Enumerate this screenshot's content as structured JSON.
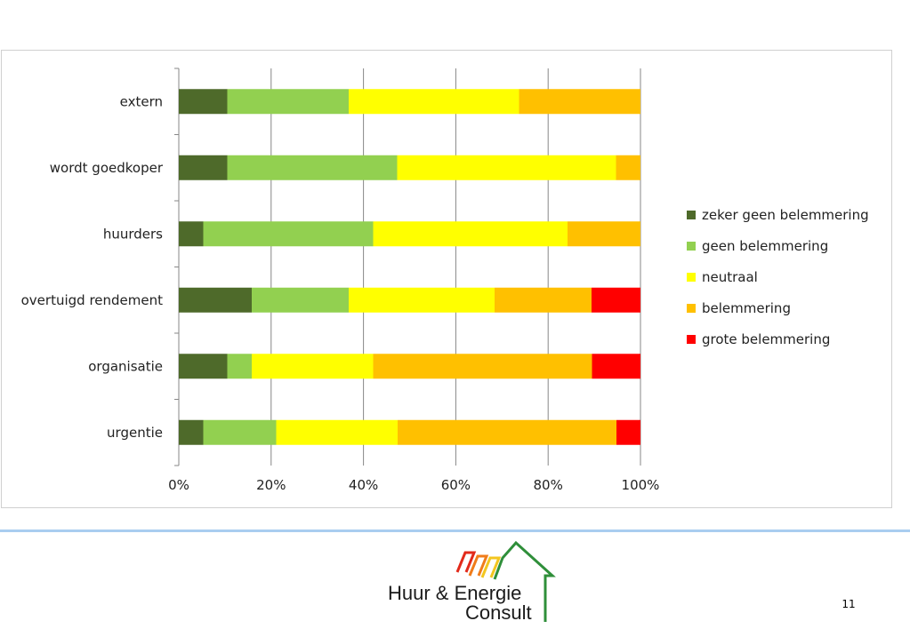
{
  "colors": {
    "zeker_geen_belemmering": "#4e6a2a",
    "geen_belemmering": "#92d050",
    "neutraal": "#ffff00",
    "belemmering": "#ffc000",
    "grote_belemmering": "#ff0000",
    "gridline": "#878787",
    "divider": "#a9cdf0"
  },
  "chart_data": {
    "type": "bar",
    "orientation": "horizontal",
    "stacked": "percent",
    "title": "",
    "xlabel": "",
    "ylabel": "",
    "xlim": [
      0,
      100
    ],
    "x_ticks": [
      "0%",
      "20%",
      "40%",
      "60%",
      "80%",
      "100%"
    ],
    "categories": [
      "urgentie",
      "organisatie",
      "overtuigd rendement",
      "huurders",
      "wordt goedkoper",
      "extern"
    ],
    "series": [
      {
        "name": "zeker geen belemmering",
        "values": [
          5.3,
          10.5,
          15.8,
          5.3,
          10.5,
          10.5
        ]
      },
      {
        "name": "geen belemmering",
        "values": [
          15.8,
          5.3,
          21.0,
          36.8,
          36.8,
          26.3
        ]
      },
      {
        "name": "neutraal",
        "values": [
          26.3,
          26.3,
          31.6,
          42.1,
          47.4,
          36.9
        ]
      },
      {
        "name": "belemmering",
        "values": [
          47.4,
          47.4,
          21.0,
          15.8,
          5.3,
          26.3
        ]
      },
      {
        "name": "grote belemmering",
        "values": [
          5.2,
          10.5,
          10.6,
          0,
          0,
          0
        ]
      }
    ],
    "legend_position": "right",
    "grid": "vertical major gridlines"
  },
  "footer": {
    "logo_text_line1": "Huur & Energie",
    "logo_text_line2": "Consult",
    "page_number": "11"
  }
}
